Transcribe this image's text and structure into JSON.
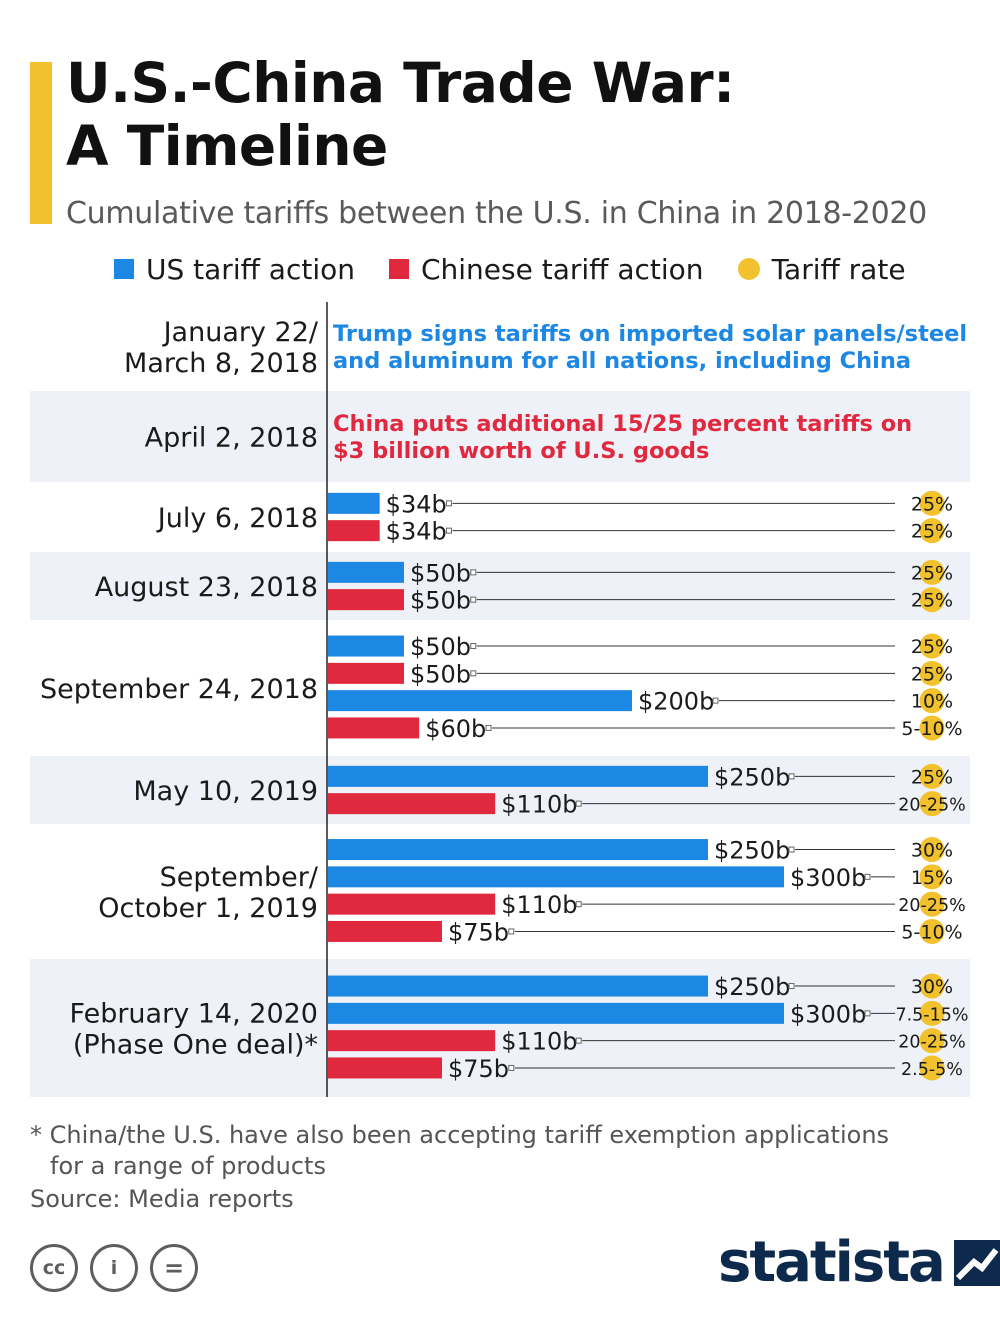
{
  "header": {
    "title_line1": "U.S.-China Trade War:",
    "title_line2": "A Timeline",
    "subtitle": "Cumulative tariffs between the U.S. in China in 2018-2020"
  },
  "legend": [
    {
      "label": "US tariff action",
      "color": "#1d87e4",
      "shape": "square"
    },
    {
      "label": "Chinese tariff action",
      "color": "#e0283f",
      "shape": "square"
    },
    {
      "label": "Tariff rate",
      "color": "#f2c12e",
      "shape": "circle"
    }
  ],
  "colors": {
    "us": "#1d87e4",
    "china": "#e0283f",
    "rate": "#f2c12e",
    "band": "#eef2f8"
  },
  "chart_data": {
    "type": "bar",
    "orientation": "horizontal",
    "value_unit": "billion USD",
    "x_range": [
      0,
      300
    ],
    "events": [
      {
        "date": [
          "January 22/",
          "March 8, 2018"
        ],
        "note": {
          "side": "us",
          "lines": [
            "Trump signs tariffs on imported solar panels/steel",
            "and aluminum for all nations, including China"
          ]
        },
        "bars": []
      },
      {
        "date": [
          "April 2, 2018"
        ],
        "note": {
          "side": "china",
          "lines": [
            "China puts additional 15/25 percent tariffs on",
            "$3 billion worth of U.S. goods"
          ]
        },
        "bars": []
      },
      {
        "date": [
          "July 6, 2018"
        ],
        "bars": [
          {
            "side": "us",
            "value": 34,
            "label": "$34b",
            "rate": "25%"
          },
          {
            "side": "china",
            "value": 34,
            "label": "$34b",
            "rate": "25%"
          }
        ]
      },
      {
        "date": [
          "August 23, 2018"
        ],
        "bars": [
          {
            "side": "us",
            "value": 50,
            "label": "$50b",
            "rate": "25%"
          },
          {
            "side": "china",
            "value": 50,
            "label": "$50b",
            "rate": "25%"
          }
        ]
      },
      {
        "date": [
          "September 24, 2018"
        ],
        "bars": [
          {
            "side": "us",
            "value": 50,
            "label": "$50b",
            "rate": "25%"
          },
          {
            "side": "china",
            "value": 50,
            "label": "$50b",
            "rate": "25%"
          },
          {
            "side": "us",
            "value": 200,
            "label": "$200b",
            "rate": "10%"
          },
          {
            "side": "china",
            "value": 60,
            "label": "$60b",
            "rate": "5-10%"
          }
        ]
      },
      {
        "date": [
          "May 10, 2019"
        ],
        "bars": [
          {
            "side": "us",
            "value": 250,
            "label": "$250b",
            "rate": "25%"
          },
          {
            "side": "china",
            "value": 110,
            "label": "$110b",
            "rate": "20-25%"
          }
        ]
      },
      {
        "date": [
          "September/",
          "October 1, 2019"
        ],
        "bars": [
          {
            "side": "us",
            "value": 250,
            "label": "$250b",
            "rate": "30%"
          },
          {
            "side": "us",
            "value": 300,
            "label": "$300b",
            "rate": "15%"
          },
          {
            "side": "china",
            "value": 110,
            "label": "$110b",
            "rate": "20-25%"
          },
          {
            "side": "china",
            "value": 75,
            "label": "$75b",
            "rate": "5-10%"
          }
        ]
      },
      {
        "date": [
          "February 14, 2020",
          "(Phase One deal)*"
        ],
        "bars": [
          {
            "side": "us",
            "value": 250,
            "label": "$250b",
            "rate": "30%"
          },
          {
            "side": "us",
            "value": 300,
            "label": "$300b",
            "rate": "7.5-15%"
          },
          {
            "side": "china",
            "value": 110,
            "label": "$110b",
            "rate": "20-25%"
          },
          {
            "side": "china",
            "value": 75,
            "label": "$75b",
            "rate": "2.5-5%"
          }
        ]
      }
    ]
  },
  "footer": {
    "footnote_line1": "* China/the U.S. have also been accepting tariff exemption applications",
    "footnote_line2": "for a range of products",
    "source": "Source: Media reports",
    "cc_icons": [
      {
        "icon": "creative-commons-icon",
        "glyph": "cc"
      },
      {
        "icon": "attribution-icon",
        "glyph": "i"
      },
      {
        "icon": "no-derivatives-icon",
        "glyph": "="
      }
    ],
    "brand": "statista"
  }
}
